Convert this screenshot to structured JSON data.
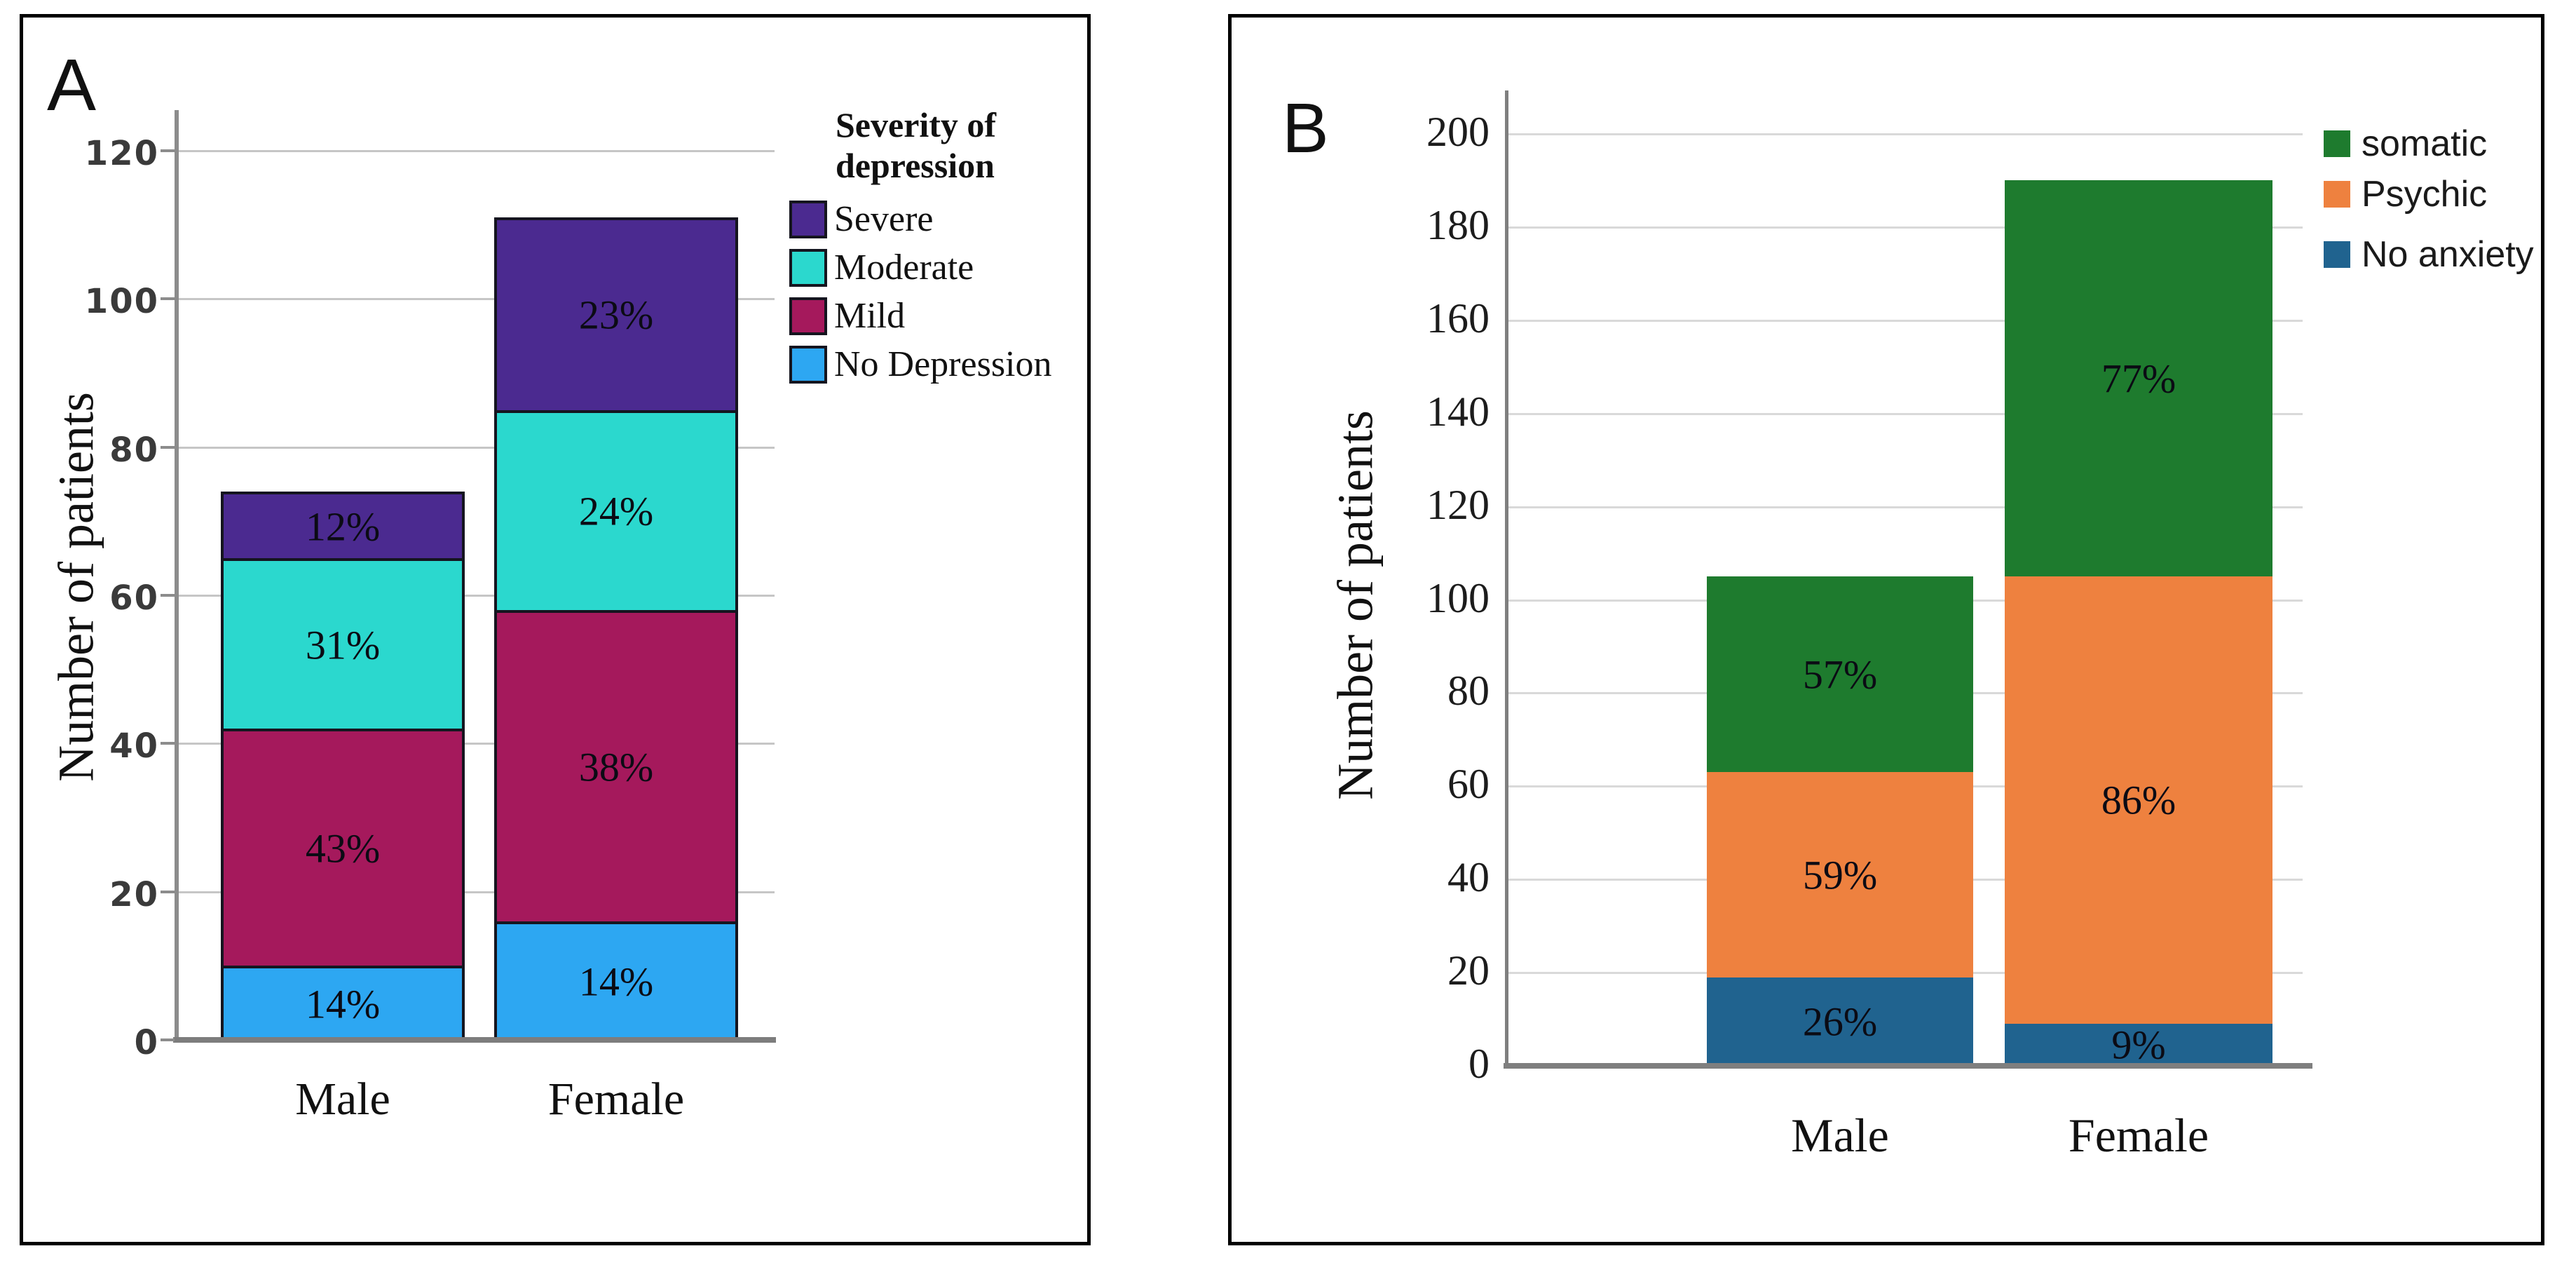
{
  "figure": {
    "background_color": "#ffffff",
    "panels": [
      {
        "letter": "A",
        "y_axis_label": "Number of patients",
        "y_ticks": [
          "0",
          "20",
          "40",
          "60",
          "80",
          "100",
          "120"
        ],
        "x_labels": [
          "Male",
          "Female"
        ],
        "legend": {
          "title_text": "Severity of\ndepression",
          "items": [
            {
              "label": "Severe",
              "color": "#4b2a90"
            },
            {
              "label": "Moderate",
              "color": "#2bd8ce"
            },
            {
              "label": "Mild",
              "color": "#a5195c"
            },
            {
              "label": "No Depression",
              "color": "#2da7f2"
            }
          ]
        }
      },
      {
        "letter": "B",
        "y_axis_label": "Number of patients",
        "y_ticks": [
          "0",
          "20",
          "40",
          "60",
          "80",
          "100",
          "120",
          "140",
          "160",
          "180",
          "200"
        ],
        "x_labels": [
          "Male",
          "Female"
        ],
        "legend": {
          "title_text": "",
          "items": [
            {
              "label": "somatic",
              "color": "#1e7b2e"
            },
            {
              "label": "Psychic",
              "color": "#ee813f"
            },
            {
              "label": "No anxiety",
              "color": "#20638f"
            }
          ]
        }
      }
    ]
  },
  "chart_data": [
    {
      "type": "bar",
      "stacked": true,
      "panel": "A",
      "categories": [
        "Male",
        "Female"
      ],
      "xlabel": "",
      "ylabel": "Number of patients",
      "ylim": [
        0,
        120
      ],
      "ytick_step": 20,
      "grid": true,
      "legend_position": "right",
      "legend_title": "Severity of depression",
      "series": [
        {
          "name": "No Depression",
          "color": "#2da7f2",
          "values": [
            10,
            16
          ],
          "percent_labels": [
            "14%",
            "14%"
          ]
        },
        {
          "name": "Mild",
          "color": "#a5195c",
          "values": [
            32,
            42
          ],
          "percent_labels": [
            "43%",
            "38%"
          ]
        },
        {
          "name": "Moderate",
          "color": "#2bd8ce",
          "values": [
            23,
            27
          ],
          "percent_labels": [
            "31%",
            "24%"
          ]
        },
        {
          "name": "Severe",
          "color": "#4b2a90",
          "values": [
            9,
            26
          ],
          "percent_labels": [
            "12%",
            "23%"
          ]
        }
      ],
      "totals": [
        74,
        111
      ]
    },
    {
      "type": "bar",
      "stacked": true,
      "panel": "B",
      "categories": [
        "Male",
        "Female"
      ],
      "xlabel": "",
      "ylabel": "Number of patients",
      "ylim": [
        0,
        200
      ],
      "ytick_step": 20,
      "grid": true,
      "legend_position": "top-right",
      "legend_title": "",
      "series": [
        {
          "name": "No anxiety",
          "color": "#20638f",
          "values": [
            19,
            9
          ],
          "percent_labels": [
            "26%",
            "9%"
          ]
        },
        {
          "name": "Psychic",
          "color": "#ee813f",
          "values": [
            44,
            96
          ],
          "percent_labels": [
            "59%",
            "86%"
          ]
        },
        {
          "name": "somatic",
          "color": "#1e7b2e",
          "values": [
            42,
            85
          ],
          "percent_labels": [
            "57%",
            "77%"
          ]
        }
      ],
      "totals": [
        105,
        190
      ]
    }
  ]
}
